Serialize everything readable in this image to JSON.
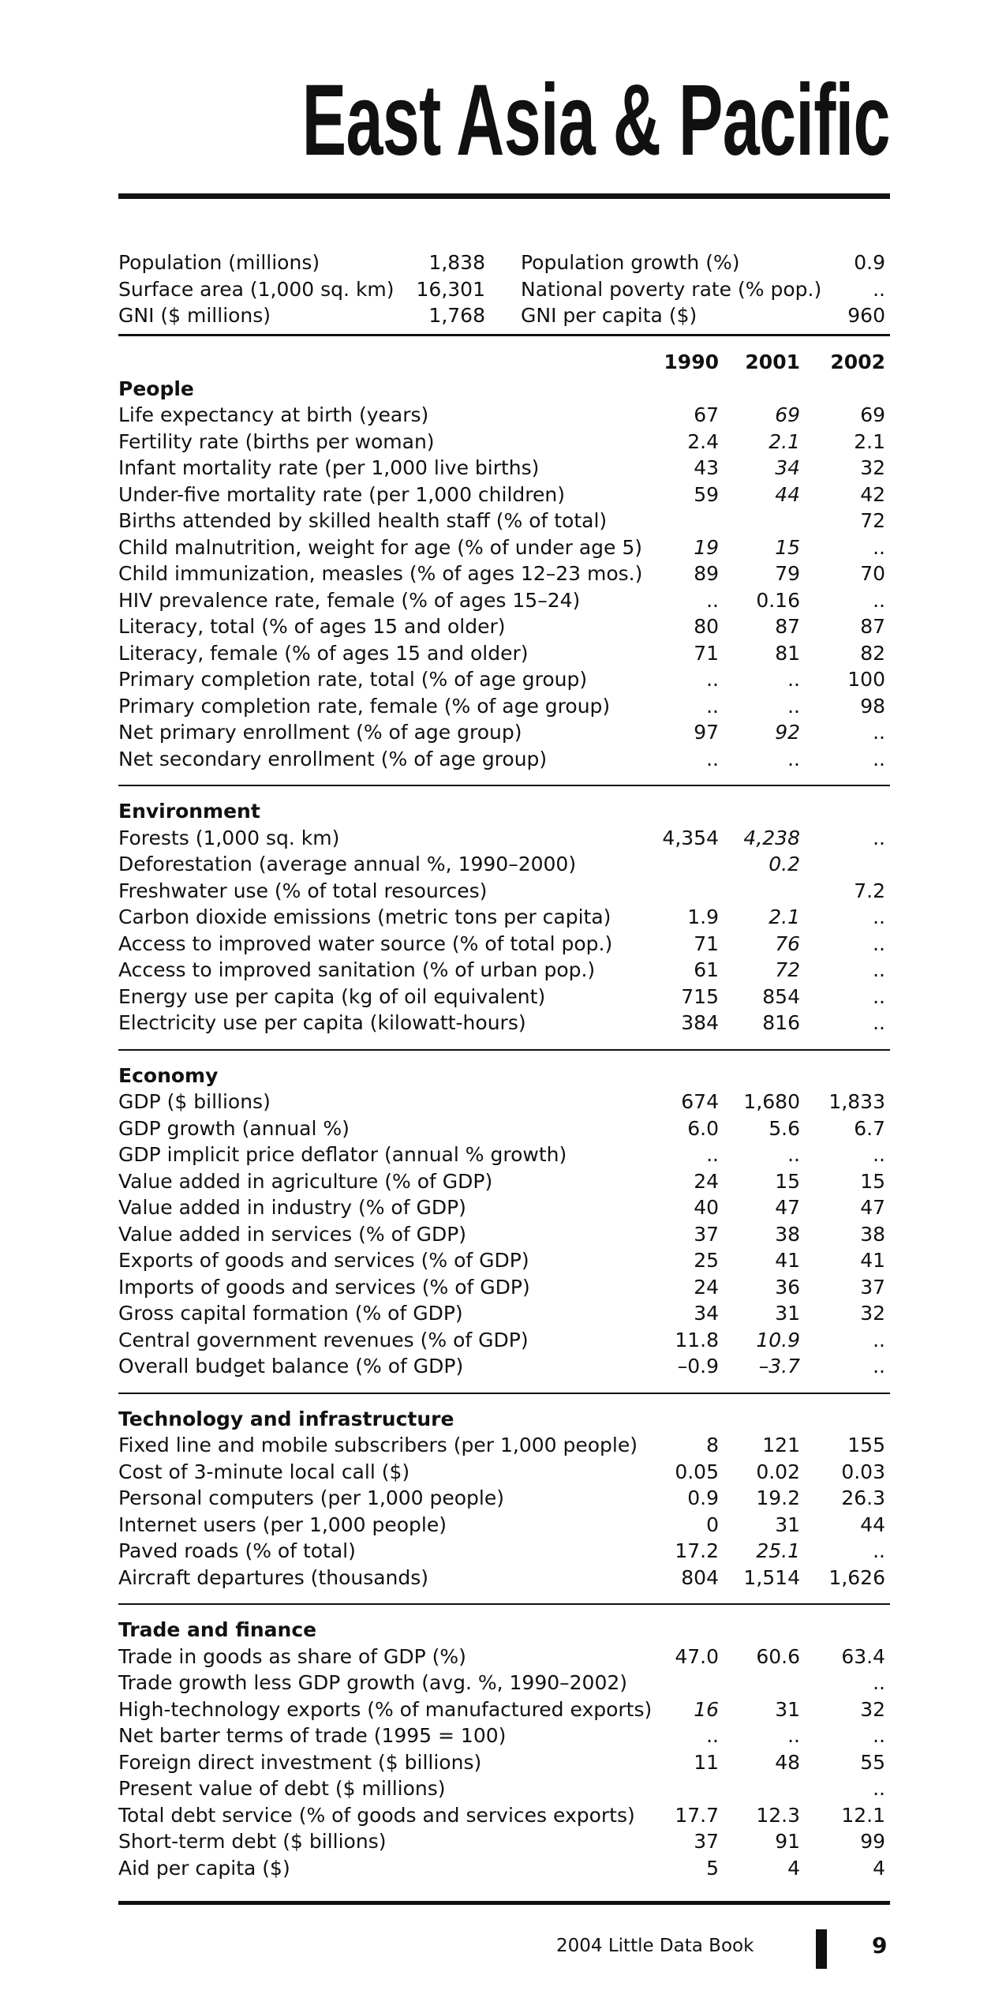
{
  "title": "East Asia & Pacific",
  "summary": [
    [
      {
        "label": "Population (millions)",
        "value": "1,838"
      },
      {
        "label": "Population growth (%)",
        "value": "0.9"
      }
    ],
    [
      {
        "label": "Surface area (1,000 sq. km)",
        "value": "16,301"
      },
      {
        "label": "National poverty rate (% pop.)",
        "value": ".."
      }
    ],
    [
      {
        "label": "GNI ($ millions)",
        "value": "1,768"
      },
      {
        "label": "GNI per capita ($)",
        "value": "960"
      }
    ]
  ],
  "table": {
    "columns": [
      "1990",
      "2001",
      "2002"
    ],
    "sections": [
      {
        "title": "People",
        "rows": [
          {
            "label": "Life expectancy at birth (years)",
            "values": [
              "67",
              "69",
              "69"
            ],
            "italic": [
              false,
              true,
              false
            ]
          },
          {
            "label": "Fertility rate (births per woman)",
            "values": [
              "2.4",
              "2.1",
              "2.1"
            ],
            "italic": [
              false,
              true,
              false
            ]
          },
          {
            "label": "Infant mortality rate (per 1,000 live births)",
            "values": [
              "43",
              "34",
              "32"
            ],
            "italic": [
              false,
              true,
              false
            ]
          },
          {
            "label": "Under-five mortality rate (per 1,000 children)",
            "values": [
              "59",
              "44",
              "42"
            ],
            "italic": [
              false,
              true,
              false
            ]
          },
          {
            "label": "Births attended by skilled health staff (% of total)",
            "values": [
              null,
              null,
              "72"
            ]
          },
          {
            "label": "Child malnutrition, weight for age (% of under age 5)",
            "values": [
              "19",
              "15",
              ".."
            ],
            "italic": [
              true,
              true,
              false
            ]
          },
          {
            "label": "Child immunization, measles (% of ages 12–23 mos.)",
            "values": [
              "89",
              "79",
              "70"
            ]
          },
          {
            "label": "HIV prevalence rate, female (% of ages 15–24)",
            "values": [
              "..",
              "0.16",
              ".."
            ]
          },
          {
            "label": "Literacy, total (% of ages 15 and older)",
            "values": [
              "80",
              "87",
              "87"
            ]
          },
          {
            "label": "Literacy, female (% of ages 15 and older)",
            "values": [
              "71",
              "81",
              "82"
            ]
          },
          {
            "label": "Primary completion rate, total (% of age group)",
            "values": [
              "..",
              "..",
              "100"
            ]
          },
          {
            "label": "Primary completion rate, female (% of age group)",
            "values": [
              "..",
              "..",
              "98"
            ]
          },
          {
            "label": "Net primary enrollment (% of age group)",
            "values": [
              "97",
              "92",
              ".."
            ],
            "italic": [
              false,
              true,
              false
            ]
          },
          {
            "label": "Net secondary enrollment (% of age group)",
            "values": [
              "..",
              "..",
              ".."
            ]
          }
        ]
      },
      {
        "title": "Environment",
        "rows": [
          {
            "label": "Forests (1,000 sq. km)",
            "values": [
              "4,354",
              "4,238",
              ".."
            ],
            "italic": [
              false,
              true,
              false
            ]
          },
          {
            "label": "Deforestation (average annual %, 1990–2000)",
            "values": [
              null,
              "0.2",
              null
            ],
            "italic": [
              false,
              true,
              false
            ]
          },
          {
            "label": "Freshwater use (% of total resources)",
            "values": [
              null,
              null,
              "7.2"
            ]
          },
          {
            "label": "Carbon dioxide emissions (metric tons per capita)",
            "values": [
              "1.9",
              "2.1",
              ".."
            ],
            "italic": [
              false,
              true,
              false
            ]
          },
          {
            "label": "Access to improved water source (% of total pop.)",
            "values": [
              "71",
              "76",
              ".."
            ],
            "italic": [
              false,
              true,
              false
            ]
          },
          {
            "label": "Access to improved sanitation (% of urban pop.)",
            "values": [
              "61",
              "72",
              ".."
            ],
            "italic": [
              false,
              true,
              false
            ]
          },
          {
            "label": "Energy use per capita (kg of oil equivalent)",
            "values": [
              "715",
              "854",
              ".."
            ]
          },
          {
            "label": "Electricity use per capita (kilowatt-hours)",
            "values": [
              "384",
              "816",
              ".."
            ]
          }
        ]
      },
      {
        "title": "Economy",
        "rows": [
          {
            "label": "GDP ($ billions)",
            "values": [
              "674",
              "1,680",
              "1,833"
            ]
          },
          {
            "label": "GDP growth (annual %)",
            "values": [
              "6.0",
              "5.6",
              "6.7"
            ]
          },
          {
            "label": "GDP implicit price deflator (annual % growth)",
            "values": [
              "..",
              "..",
              ".."
            ]
          },
          {
            "label": "Value added in agriculture (% of GDP)",
            "values": [
              "24",
              "15",
              "15"
            ]
          },
          {
            "label": "Value added in industry (% of GDP)",
            "values": [
              "40",
              "47",
              "47"
            ]
          },
          {
            "label": "Value added in services (% of GDP)",
            "values": [
              "37",
              "38",
              "38"
            ]
          },
          {
            "label": "Exports of goods and services (% of GDP)",
            "values": [
              "25",
              "41",
              "41"
            ]
          },
          {
            "label": "Imports of goods and services (% of GDP)",
            "values": [
              "24",
              "36",
              "37"
            ]
          },
          {
            "label": "Gross capital formation (% of GDP)",
            "values": [
              "34",
              "31",
              "32"
            ]
          },
          {
            "label": "Central government revenues (% of GDP)",
            "values": [
              "11.8",
              "10.9",
              ".."
            ],
            "italic": [
              false,
              true,
              false
            ]
          },
          {
            "label": "Overall budget balance (% of GDP)",
            "values": [
              "–0.9",
              "–3.7",
              ".."
            ],
            "italic": [
              false,
              true,
              false
            ]
          }
        ]
      },
      {
        "title": "Technology and infrastructure",
        "rows": [
          {
            "label": "Fixed line and mobile subscribers (per 1,000 people)",
            "values": [
              "8",
              "121",
              "155"
            ]
          },
          {
            "label": "Cost of 3-minute local call ($)",
            "values": [
              "0.05",
              "0.02",
              "0.03"
            ]
          },
          {
            "label": "Personal computers (per 1,000 people)",
            "values": [
              "0.9",
              "19.2",
              "26.3"
            ]
          },
          {
            "label": "Internet users (per 1,000 people)",
            "values": [
              "0",
              "31",
              "44"
            ]
          },
          {
            "label": "Paved roads (% of total)",
            "values": [
              "17.2",
              "25.1",
              ".."
            ],
            "italic": [
              false,
              true,
              false
            ]
          },
          {
            "label": "Aircraft departures (thousands)",
            "values": [
              "804",
              "1,514",
              "1,626"
            ]
          }
        ]
      },
      {
        "title": "Trade and finance",
        "rows": [
          {
            "label": "Trade in goods as share of GDP (%)",
            "values": [
              "47.0",
              "60.6",
              "63.4"
            ]
          },
          {
            "label": "Trade growth less GDP growth (avg. %, 1990–2002)",
            "values": [
              null,
              null,
              ".."
            ]
          },
          {
            "label": "High-technology exports (% of manufactured exports)",
            "values": [
              "16",
              "31",
              "32"
            ],
            "italic": [
              true,
              false,
              false
            ]
          },
          {
            "label": "Net barter terms of trade (1995 = 100)",
            "values": [
              "..",
              "..",
              ".."
            ]
          },
          {
            "label": "Foreign direct investment ($ billions)",
            "values": [
              "11",
              "48",
              "55"
            ]
          },
          {
            "label": "Present value of debt ($ millions)",
            "values": [
              null,
              null,
              ".."
            ]
          },
          {
            "label": "Total debt service (% of goods and services exports)",
            "values": [
              "17.7",
              "12.3",
              "12.1"
            ]
          },
          {
            "label": "Short-term debt ($ billions)",
            "values": [
              "37",
              "91",
              "99"
            ]
          },
          {
            "label": "Aid per capita ($)",
            "values": [
              "5",
              "4",
              "4"
            ]
          }
        ]
      }
    ]
  },
  "footer": {
    "book": "2004 Little Data Book",
    "page": "9"
  }
}
